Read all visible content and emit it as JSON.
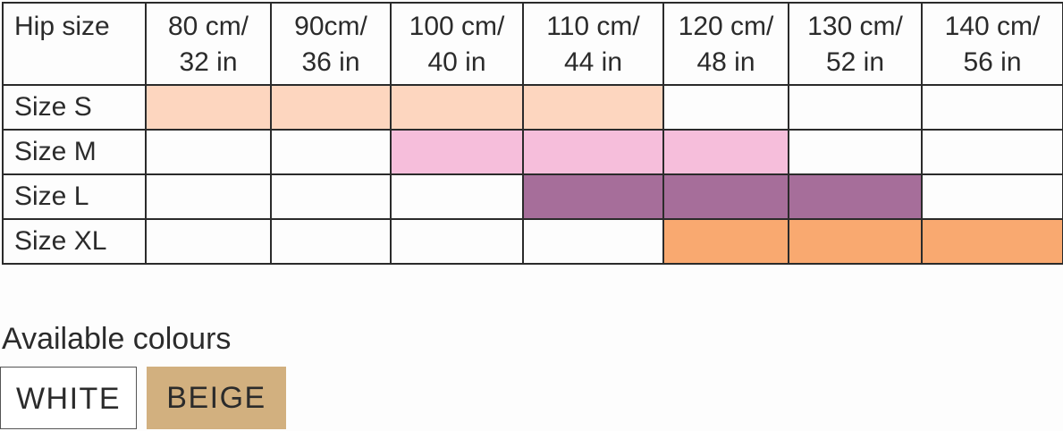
{
  "size_chart": {
    "corner_label": "Hip size",
    "columns": [
      {
        "cm": "80 cm/",
        "in": "32 in"
      },
      {
        "cm": "90cm/",
        "in": "36 in"
      },
      {
        "cm": "100 cm/",
        "in": "40 in"
      },
      {
        "cm": "110 cm/",
        "in": "44 in"
      },
      {
        "cm": "120 cm/",
        "in": "48 in"
      },
      {
        "cm": "130 cm/",
        "in": "52 in"
      },
      {
        "cm": "140 cm/",
        "in": "56 in"
      }
    ],
    "rows": [
      {
        "label": "Size S",
        "color": "#fdd6bf",
        "covered": [
          true,
          true,
          true,
          true,
          false,
          false,
          false
        ]
      },
      {
        "label": "Size M",
        "color": "#f6bedb",
        "covered": [
          false,
          false,
          true,
          true,
          true,
          false,
          false
        ]
      },
      {
        "label": "Size L",
        "color": "#a66e9a",
        "covered": [
          false,
          false,
          false,
          true,
          true,
          true,
          false
        ]
      },
      {
        "label": "Size XL",
        "color": "#f9a970",
        "covered": [
          false,
          false,
          false,
          false,
          true,
          true,
          true
        ]
      }
    ]
  },
  "colours": {
    "label": "Available colours",
    "options": [
      {
        "name": "WHITE",
        "color": "#ffffff"
      },
      {
        "name": "BEIGE",
        "color": "#d2b07f"
      }
    ]
  }
}
